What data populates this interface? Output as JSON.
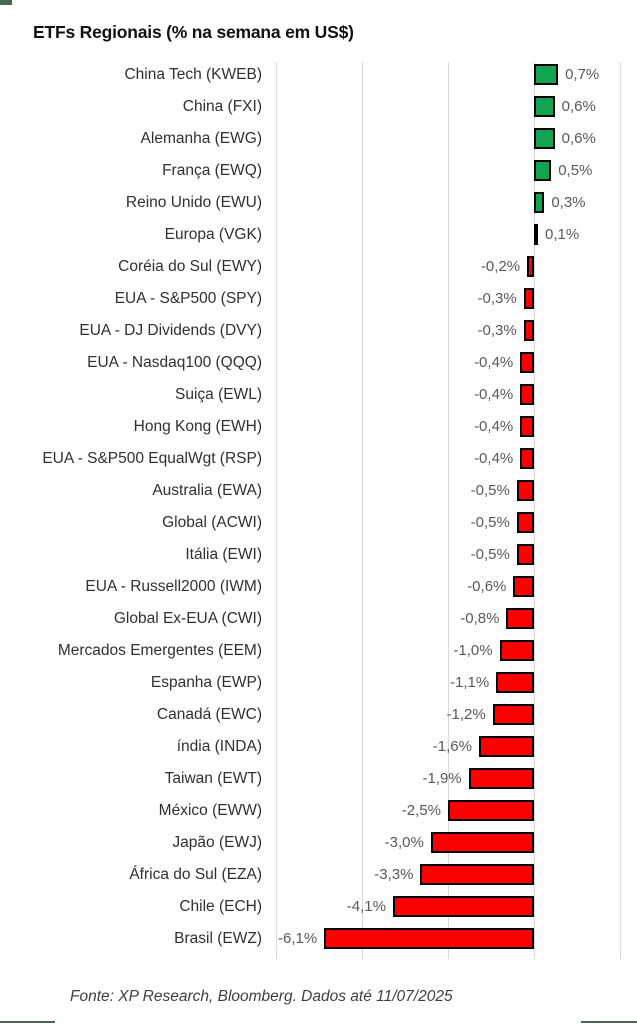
{
  "title": "ETFs Regionais (% na semana em US$)",
  "footer": "Fonte: XP Research, Bloomberg. Dados até 11/07/2025",
  "chart_data": {
    "type": "bar",
    "orientation": "horizontal",
    "title": "ETFs Regionais (% na semana em US$)",
    "xlabel": "",
    "ylabel": "",
    "xlim": [
      -7.5,
      2.5
    ],
    "gridline_values": [
      -7.5,
      -5.0,
      -2.5,
      0,
      2.5
    ],
    "grid": "vertical-on",
    "legend": "none",
    "categories": [
      "China Tech (KWEB)",
      "China (FXI)",
      "Alemanha (EWG)",
      "França (EWQ)",
      "Reino Unido (EWU)",
      "Europa (VGK)",
      "Coréia do Sul (EWY)",
      "EUA - S&P500 (SPY)",
      "EUA - DJ Dividends (DVY)",
      "EUA - Nasdaq100 (QQQ)",
      "Suiça (EWL)",
      "Hong Kong (EWH)",
      "EUA - S&P500 EqualWgt (RSP)",
      "Australia (EWA)",
      "Global (ACWI)",
      "Itália (EWI)",
      "EUA - Russell2000 (IWM)",
      "Global Ex-EUA (CWI)",
      "Mercados Emergentes (EEM)",
      "Espanha (EWP)",
      "Canadá (EWC)",
      "índia (INDA)",
      "Taiwan (EWT)",
      "México (EWW)",
      "Japão (EWJ)",
      "África do Sul (EZA)",
      "Chile (ECH)",
      "Brasil (EWZ)"
    ],
    "values": [
      0.7,
      0.6,
      0.6,
      0.5,
      0.3,
      0.1,
      -0.2,
      -0.3,
      -0.3,
      -0.4,
      -0.4,
      -0.4,
      -0.4,
      -0.5,
      -0.5,
      -0.5,
      -0.6,
      -0.8,
      -1.0,
      -1.1,
      -1.2,
      -1.6,
      -1.9,
      -2.5,
      -3.0,
      -3.3,
      -4.1,
      -6.1
    ],
    "value_labels": [
      "0,7%",
      "0,6%",
      "0,6%",
      "0,5%",
      "0,3%",
      "0,1%",
      "-0,2%",
      "-0,3%",
      "-0,3%",
      "-0,4%",
      "-0,4%",
      "-0,4%",
      "-0,4%",
      "-0,5%",
      "-0,5%",
      "-0,5%",
      "-0,6%",
      "-0,8%",
      "-1,0%",
      "-1,1%",
      "-1,2%",
      "-1,6%",
      "-1,9%",
      "-2,5%",
      "-3,0%",
      "-3,3%",
      "-4,1%",
      "-6,1%"
    ],
    "colors": {
      "positive_bar": "#12a551",
      "negative_bar": "#ff0000",
      "bar_border": "#000000",
      "gridline": "#d9d9d9",
      "value_label_text": "#595959",
      "category_label_text": "#303030"
    }
  },
  "decor": {
    "accent_color": "#47684f"
  }
}
